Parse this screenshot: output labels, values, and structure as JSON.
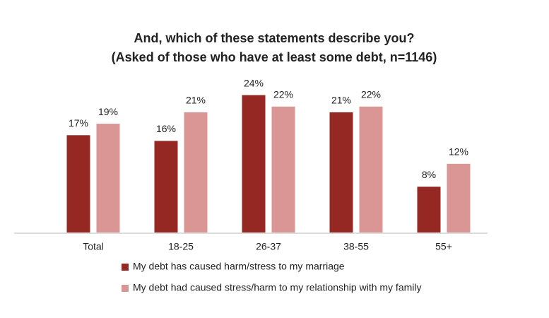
{
  "chart_data": {
    "type": "bar",
    "title": "And, which of these statements describe you?",
    "subtitle": "(Asked of those who have at least some debt, n=1146)",
    "categories": [
      "Total",
      "18-25",
      "26-37",
      "38-55",
      "55+"
    ],
    "series": [
      {
        "name": "My debt has caused harm/stress to my marriage",
        "color": "#962824",
        "values": [
          17,
          16,
          24,
          21,
          8
        ],
        "value_labels": [
          "17%",
          "16%",
          "24%",
          "21%",
          "8%"
        ]
      },
      {
        "name": "My debt had caused stress/harm to my relationship with my family",
        "color": "#d99694",
        "values": [
          19,
          21,
          22,
          22,
          12
        ],
        "value_labels": [
          "19%",
          "21%",
          "22%",
          "22%",
          "12%"
        ]
      }
    ]
  }
}
